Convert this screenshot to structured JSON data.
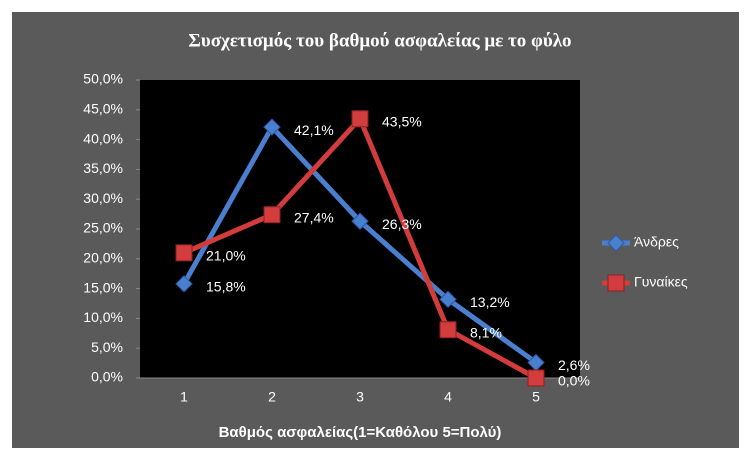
{
  "chart_data": {
    "type": "line",
    "title": "Συσχετισμός του βαθμού ασφαλείας με το φύλο",
    "x_label": "Βαθμός ασφαλείας(1=Καθόλου 5=Πολύ)",
    "categories": [
      "1",
      "2",
      "3",
      "4",
      "5"
    ],
    "series": [
      {
        "name": "Άνδρες",
        "color": "#4a7fd0",
        "marker": "diamond",
        "values": [
          15.8,
          42.1,
          26.3,
          13.2,
          2.6
        ],
        "value_labels": [
          "15,8%",
          "42,1%",
          "26,3%",
          "13,2%",
          "2,6%"
        ]
      },
      {
        "name": "Γυναίκες",
        "color": "#d23c3c",
        "marker": "square",
        "values": [
          21.0,
          27.4,
          43.5,
          8.1,
          0.0
        ],
        "value_labels": [
          "21,0%",
          "27,4%",
          "43,5%",
          "8,1%",
          "0,0%"
        ]
      }
    ],
    "ylim": [
      0,
      50
    ],
    "yticks": [
      {
        "value": 0,
        "label": "0,0%"
      },
      {
        "value": 5,
        "label": "5,0%"
      },
      {
        "value": 10,
        "label": "10,0%"
      },
      {
        "value": 15,
        "label": "15,0%"
      },
      {
        "value": 20,
        "label": "20,0%"
      },
      {
        "value": 25,
        "label": "25,0%"
      },
      {
        "value": 30,
        "label": "30,0%"
      },
      {
        "value": 35,
        "label": "35,0%"
      },
      {
        "value": 40,
        "label": "40,0%"
      },
      {
        "value": 45,
        "label": "45,0%"
      },
      {
        "value": 50,
        "label": "50,0%"
      }
    ],
    "legend": "right"
  }
}
